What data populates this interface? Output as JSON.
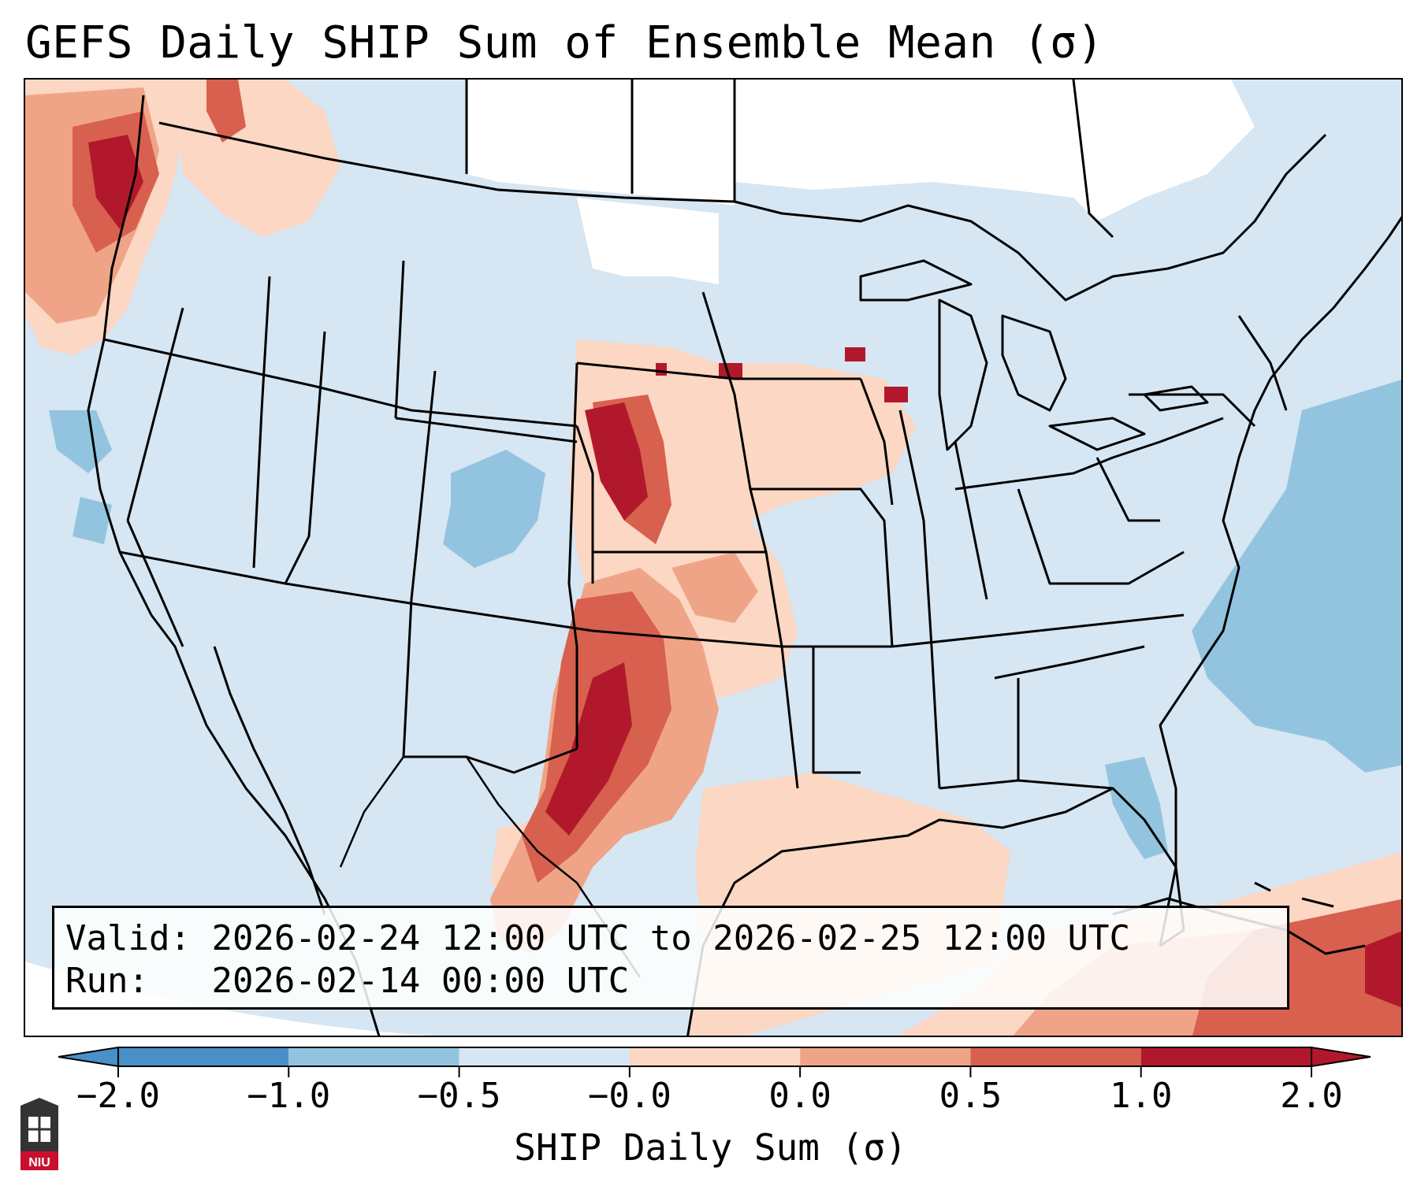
{
  "header": {
    "title": "GEFS Daily SHIP Sum of Ensemble Mean (σ)"
  },
  "info_box": {
    "valid_label": "Valid:",
    "valid_value": "2026-02-24 12:00 UTC to 2026-02-25 12:00 UTC",
    "run_label": "Run:",
    "run_value": "2026-02-14 00:00 UTC"
  },
  "colorbar": {
    "label": "SHIP Daily Sum (σ)",
    "ticks": [
      "−2.0",
      "−1.0",
      "−0.5",
      "−0.0",
      "0.0",
      "0.5",
      "1.0",
      "2.0"
    ],
    "colors": [
      "#4a90c8",
      "#92c4e0",
      "#d6e6f2",
      "#ffffff",
      "#fbd7c4",
      "#f0a487",
      "#d8604e",
      "#b2182b"
    ],
    "extend": "both"
  },
  "map": {
    "region": "Contiguous United States",
    "projection": "Lambert Conformal",
    "palette": {
      "strong_negative": "#4a90c8",
      "negative": "#92c4e0",
      "weak_negative": "#d6e6f2",
      "neutral": "#ffffff",
      "weak_positive": "#fbd7c4",
      "positive": "#f0a487",
      "moderate_positive": "#d8604e",
      "strong_positive": "#b2182b"
    }
  },
  "logo": {
    "text": "NIU"
  }
}
